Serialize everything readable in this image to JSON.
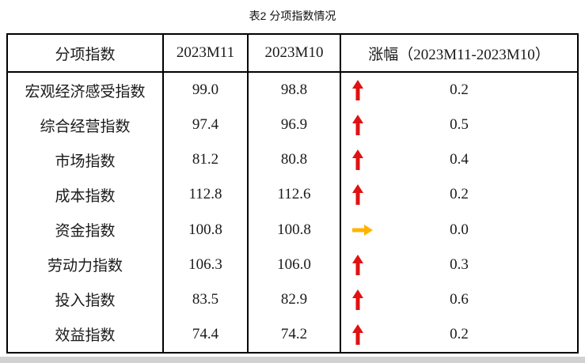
{
  "title": "表2  分项指数情况",
  "table": {
    "headers": {
      "col1": "分项指数",
      "col2": "2023M11",
      "col3": "2023M10",
      "col4": "涨幅（2023M11-2023M10）"
    },
    "rows": [
      {
        "label": "宏观经济感受指数",
        "m11": "99.0",
        "m10": "98.8",
        "direction": "up",
        "change": "0.2"
      },
      {
        "label": "综合经营指数",
        "m11": "97.4",
        "m10": "96.9",
        "direction": "up",
        "change": "0.5"
      },
      {
        "label": "市场指数",
        "m11": "81.2",
        "m10": "80.8",
        "direction": "up",
        "change": "0.4"
      },
      {
        "label": "成本指数",
        "m11": "112.8",
        "m10": "112.6",
        "direction": "up",
        "change": "0.2"
      },
      {
        "label": "资金指数",
        "m11": "100.8",
        "m10": "100.8",
        "direction": "flat",
        "change": "0.0"
      },
      {
        "label": "劳动力指数",
        "m11": "106.3",
        "m10": "106.0",
        "direction": "up",
        "change": "0.3"
      },
      {
        "label": "投入指数",
        "m11": "83.5",
        "m10": "82.9",
        "direction": "up",
        "change": "0.6"
      },
      {
        "label": "效益指数",
        "m11": "74.4",
        "m10": "74.2",
        "direction": "up",
        "change": "0.2"
      }
    ]
  },
  "colors": {
    "up_arrow": "#e01212",
    "flat_arrow": "#ffb300",
    "border": "#000000",
    "footer_strip": "#d2d2d2"
  },
  "chart_data": {
    "type": "table",
    "title": "表2  分项指数情况",
    "columns": [
      "分项指数",
      "2023M11",
      "2023M10",
      "涨幅（2023M11-2023M10）"
    ],
    "rows": [
      [
        "宏观经济感受指数",
        99.0,
        98.8,
        0.2
      ],
      [
        "综合经营指数",
        97.4,
        96.9,
        0.5
      ],
      [
        "市场指数",
        81.2,
        80.8,
        0.4
      ],
      [
        "成本指数",
        112.8,
        112.6,
        0.2
      ],
      [
        "资金指数",
        100.8,
        100.8,
        0.0
      ],
      [
        "劳动力指数",
        106.3,
        106.0,
        0.3
      ],
      [
        "投入指数",
        83.5,
        82.9,
        0.6
      ],
      [
        "效益指数",
        74.4,
        74.2,
        0.2
      ]
    ]
  }
}
